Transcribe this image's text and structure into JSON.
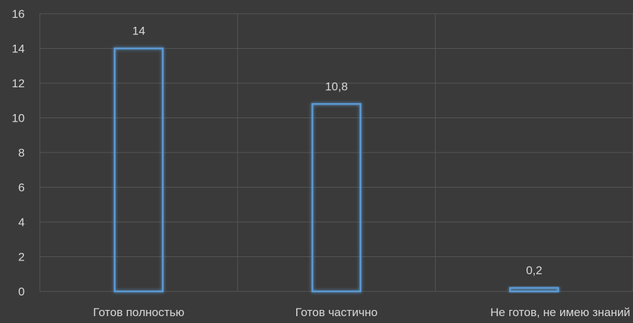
{
  "chart_data": {
    "type": "bar",
    "categories": [
      "Готов полностью",
      "Готов частично",
      "Не готов, не имею знаний"
    ],
    "values": [
      14,
      10.8,
      0.2
    ],
    "data_labels": [
      "14",
      "10,8",
      "0,2"
    ],
    "title": "",
    "xlabel": "",
    "ylabel": "",
    "ylim": [
      0,
      16
    ],
    "yticks": [
      0,
      2,
      4,
      6,
      8,
      10,
      12,
      14,
      16
    ],
    "ytick_labels": [
      "0",
      "2",
      "4",
      "6",
      "8",
      "10",
      "12",
      "14",
      "16"
    ],
    "grid": true,
    "legend": "none"
  },
  "colors": {
    "background": "#3a3a3a",
    "grid": "#555555",
    "bar_outline": "#5b9bd5",
    "bar_glow": "#2e75b6",
    "text": "#d9d9d9"
  }
}
